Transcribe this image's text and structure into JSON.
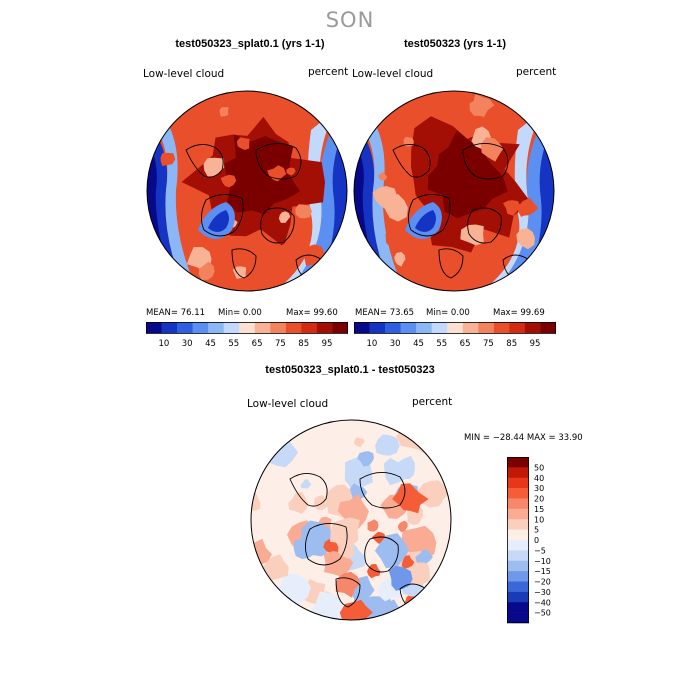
{
  "title": "SON",
  "chart_data": [
    {
      "type": "polar-contour-map",
      "title": "test050323_splat0.1 (yrs 1-1)",
      "field_label": "Low-level cloud",
      "units": "percent",
      "stats": {
        "mean": "76.11",
        "min": "0.00",
        "max": "99.60"
      },
      "stats_text": {
        "mean": "MEAN=  76.11",
        "min": "Min=     0.00",
        "max": "Max=   99.60"
      },
      "colorbar": {
        "levels": [
          10,
          30,
          45,
          55,
          65,
          75,
          85,
          95
        ],
        "labels": [
          "10",
          "30",
          "45",
          "55",
          "65",
          "75",
          "85",
          "95"
        ]
      }
    },
    {
      "type": "polar-contour-map",
      "title": "test050323 (yrs 1-1)",
      "field_label": "Low-level cloud",
      "units": "percent",
      "stats": {
        "mean": "73.65",
        "min": "0.00",
        "max": "99.69"
      },
      "stats_text": {
        "mean": "MEAN=  73.65",
        "min": "Min=     0.00",
        "max": "Max=   99.69"
      },
      "colorbar": {
        "levels": [
          10,
          30,
          45,
          55,
          65,
          75,
          85,
          95
        ],
        "labels": [
          "10",
          "30",
          "45",
          "55",
          "65",
          "75",
          "85",
          "95"
        ]
      }
    },
    {
      "type": "polar-contour-map",
      "title": "test050323_splat0.1 - test050323",
      "field_label": "Low-level cloud",
      "units": "percent",
      "stats": {
        "min": "-28.44",
        "max": "33.90"
      },
      "minmax_text": "MIN = −28.44 MAX =   33.90",
      "colorbar": {
        "levels": [
          50,
          40,
          30,
          20,
          15,
          10,
          5,
          0,
          -5,
          -10,
          -15,
          -20,
          -30,
          -40,
          -50
        ],
        "labels": [
          "50",
          "40",
          "30",
          "20",
          "15",
          "10",
          "5",
          "0",
          "−5",
          "−10",
          "−15",
          "−20",
          "−30",
          "−40",
          "−50"
        ]
      }
    }
  ],
  "colors": {
    "seq": [
      "#08088a",
      "#1634c4",
      "#2e5fe0",
      "#5b8ff2",
      "#8cb7f7",
      "#c2d9fb",
      "#fce1d3",
      "#f8b396",
      "#f3835c",
      "#e84f2a",
      "#d42a11",
      "#a30f05",
      "#7a0000"
    ],
    "div": [
      "#7a0000",
      "#c31808",
      "#e8361a",
      "#f45d38",
      "#f7876a",
      "#f9ab93",
      "#fbcfbe",
      "#fdeee7",
      "#e7eefb",
      "#c6d9f6",
      "#9dbdf1",
      "#6f98ea",
      "#3a68d8",
      "#1a3ab8",
      "#08088a"
    ],
    "season": "#9a9a9a"
  }
}
